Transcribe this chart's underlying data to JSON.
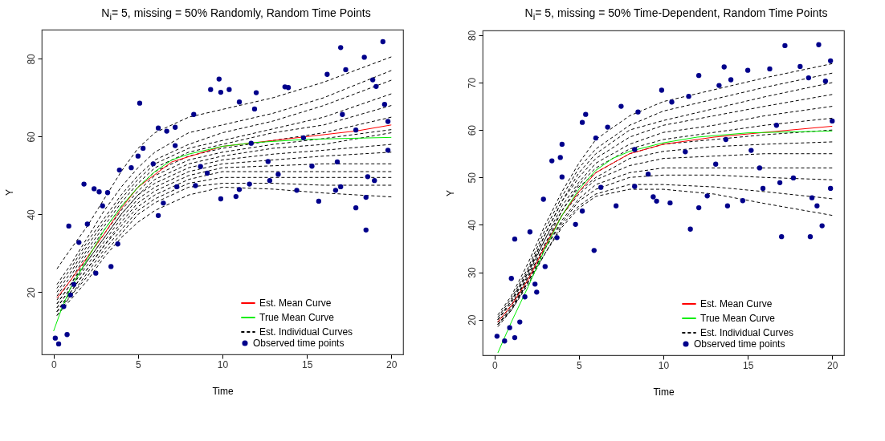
{
  "chart_data": [
    {
      "type": "line",
      "title": "N$_{i}$= 5, missing = 50% Randomly, Random Time Points",
      "xlabel": "Time",
      "ylabel": "Y",
      "xlim": [
        -0.7,
        20.7
      ],
      "xticks": [
        0,
        5,
        10,
        15,
        20
      ],
      "ylim": [
        4,
        87.5
      ],
      "yticks": [
        20,
        40,
        60,
        80
      ],
      "legend": "bottom right",
      "x": [
        0.2,
        1,
        2,
        3,
        4,
        5,
        6,
        8,
        10,
        13,
        16,
        20
      ],
      "series": [
        {
          "name": "Est. Individual Curves",
          "color": "#000000",
          "line_style": "dashed",
          "values": [
            26,
            31,
            37,
            44,
            51,
            57,
            61,
            65,
            67,
            70,
            74,
            80.5
          ]
        },
        {
          "color": "#000000",
          "line_style": "dashed",
          "values": [
            22,
            27,
            34,
            41,
            47,
            52,
            56,
            61,
            63,
            66,
            70,
            77
          ]
        },
        {
          "color": "#000000",
          "line_style": "dashed",
          "values": [
            21,
            26,
            33,
            39,
            45,
            50,
            54,
            58,
            61,
            64,
            68,
            74.5
          ]
        },
        {
          "color": "#000000",
          "line_style": "dashed",
          "values": [
            20,
            25,
            32,
            38,
            44,
            49,
            53,
            57,
            59,
            62,
            65,
            71
          ]
        },
        {
          "color": "#000000",
          "line_style": "dashed",
          "values": [
            19,
            24,
            31,
            37,
            43,
            48,
            52,
            56,
            58,
            61,
            63,
            68
          ]
        },
        {
          "color": "#000000",
          "line_style": "dashed",
          "values": [
            18,
            23,
            30,
            36,
            42,
            47,
            51,
            55,
            57,
            59,
            61,
            65
          ]
        },
        {
          "color": "#000000",
          "line_style": "dashed",
          "values": [
            17,
            22,
            29,
            35,
            41,
            46,
            50,
            54,
            56,
            58,
            59.5,
            61.8
          ]
        },
        {
          "color": "#000000",
          "line_style": "dashed",
          "values": [
            17,
            22,
            28,
            34,
            40,
            45,
            49,
            53,
            55,
            57,
            58,
            61
          ]
        },
        {
          "color": "#000000",
          "line_style": "dashed",
          "values": [
            16,
            21,
            28,
            34,
            40,
            45,
            48,
            52,
            54,
            55.5,
            56.5,
            58
          ]
        },
        {
          "color": "#000000",
          "line_style": "dashed",
          "values": [
            16,
            21,
            27,
            33,
            39,
            44,
            47,
            51,
            53,
            54,
            55,
            56
          ]
        },
        {
          "color": "#000000",
          "line_style": "dashed",
          "values": [
            15,
            20,
            26,
            32,
            38,
            43,
            46,
            50,
            52,
            52.5,
            53,
            53
          ]
        },
        {
          "color": "#000000",
          "line_style": "dashed",
          "values": [
            15,
            20,
            26,
            32,
            37,
            42,
            45,
            49,
            51,
            51,
            51,
            51
          ]
        },
        {
          "color": "#000000",
          "line_style": "dashed",
          "values": [
            15,
            19,
            25,
            31,
            36,
            41,
            44,
            48,
            49.5,
            49.5,
            49.5,
            49.5
          ]
        },
        {
          "color": "#000000",
          "line_style": "dashed",
          "values": [
            14,
            19,
            24,
            30,
            35,
            40,
            43,
            47,
            48,
            48,
            47.5,
            47.5
          ]
        },
        {
          "color": "#000000",
          "line_style": "dashed",
          "values": [
            14,
            18,
            23,
            29,
            34,
            38,
            41,
            45,
            47,
            46.5,
            45.5,
            44.5
          ]
        },
        {
          "name": "Est. Mean Curve",
          "color": "#ff0000",
          "line_style": "solid",
          "x": [
            0.2,
            1,
            2,
            3,
            4,
            5,
            7,
            10,
            13,
            15,
            18,
            20
          ],
          "values": [
            18.5,
            23,
            29,
            35,
            41.5,
            47,
            53.5,
            57.5,
            59,
            60,
            61.5,
            63
          ]
        },
        {
          "name": "True Mean Curve",
          "color": "#00ee00",
          "line_style": "solid",
          "x": [
            0,
            0.5,
            1,
            2,
            3,
            4,
            5,
            6,
            7,
            8,
            10,
            12,
            15,
            20
          ],
          "values": [
            10,
            16,
            21,
            28.5,
            36,
            42,
            47,
            51,
            54,
            55.5,
            57.5,
            58.5,
            59.3,
            59.8
          ]
        },
        {
          "name": "Observed time points",
          "type": "scatter",
          "marker": "circle",
          "color": "#00008b",
          "x": [
            0.1,
            0.3,
            0.8,
            0.9,
            0.6,
            1.8,
            2.4,
            2.7,
            2.5,
            3.4,
            3.8,
            3.9,
            5.1,
            5.0,
            6.2,
            6.2,
            6.7,
            6.5,
            7.2,
            7.3,
            8.4,
            8.3,
            9.3,
            9.8,
            9.9,
            10.4,
            9.9,
            10.8,
            11,
            11,
            12,
            11.9,
            11.6,
            12.8,
            13.7,
            13.9,
            14.4,
            15.7,
            16.2,
            17,
            17.3,
            18.4,
            19.5,
            17.9,
            18.5,
            18.5,
            19,
            16.7,
            17,
            18.6,
            19.8,
            19.8,
            19.6,
            19.1,
            18.9,
            15.3,
            16.8,
            13.3,
            9.1,
            8.7,
            7.2,
            5.9,
            5.3,
            4.6,
            3.2,
            2,
            1.5,
            1.2,
            1,
            2.9,
            11.7,
            14.8,
            17.9,
            12.7,
            17.1
          ],
          "values": [
            8.2,
            6.7,
            9.1,
            37,
            16.3,
            47.8,
            46.6,
            45.8,
            24.9,
            26.6,
            32.4,
            51.4,
            68.6,
            55,
            39.7,
            62.2,
            61.4,
            42.9,
            62.4,
            47.1,
            47.4,
            65.7,
            72.1,
            74.8,
            71.4,
            72.1,
            44,
            44.6,
            46.4,
            68.9,
            71.3,
            67.1,
            47.8,
            48.7,
            72.8,
            72.6,
            46.2,
            43.4,
            76,
            82.9,
            77.2,
            80.4,
            84.4,
            41.7,
            36,
            44.4,
            48.7,
            46.2,
            47.1,
            49.7,
            56.5,
            63.9,
            68.3,
            72.9,
            74.6,
            52.4,
            53.5,
            50.3,
            50.6,
            52.3,
            57.7,
            53,
            57,
            52,
            45.6,
            37.5,
            32.8,
            22,
            19.3,
            42.2,
            58.3,
            59.7,
            61.7,
            53.6,
            65.7
          ]
        }
      ]
    },
    {
      "type": "line",
      "title": "N$_{i}$= 5, missing = 50% Time-Dependent, Random Time Points",
      "xlabel": "Time",
      "ylabel": "Y",
      "xlim": [
        -0.7,
        20.7
      ],
      "xticks": [
        0,
        5,
        10,
        15,
        20
      ],
      "ylim": [
        12.5,
        81
      ],
      "yticks": [
        20,
        30,
        40,
        50,
        60,
        70,
        80
      ],
      "legend": "bottom right",
      "x": [
        0.2,
        1,
        2,
        3,
        4,
        5,
        6,
        8,
        10,
        13,
        16,
        20
      ],
      "series": [
        {
          "name": "Est. Individual Curves",
          "color": "#000000",
          "line_style": "dashed",
          "values": [
            21,
            25,
            32,
            40,
            47,
            53,
            58,
            63,
            66,
            68.5,
            71,
            74
          ]
        },
        {
          "color": "#000000",
          "line_style": "dashed",
          "values": [
            20.5,
            24.5,
            31,
            39,
            46,
            52,
            56,
            61,
            64,
            66.5,
            69,
            72
          ]
        },
        {
          "color": "#000000",
          "line_style": "dashed",
          "values": [
            20,
            24,
            30.5,
            38,
            45,
            51,
            55,
            60,
            62,
            64.5,
            67,
            70
          ]
        },
        {
          "color": "#000000",
          "line_style": "dashed",
          "values": [
            20,
            24,
            30,
            38,
            45,
            50,
            54,
            58.5,
            61,
            63,
            65,
            67.5
          ]
        },
        {
          "color": "#000000",
          "line_style": "dashed",
          "values": [
            20,
            23.5,
            30,
            37,
            44,
            49,
            53,
            57,
            59.5,
            61,
            63,
            65
          ]
        },
        {
          "color": "#000000",
          "line_style": "dashed",
          "values": [
            19.5,
            23,
            29.5,
            37,
            43,
            48.5,
            52,
            56,
            58,
            59.5,
            61,
            62.5
          ]
        },
        {
          "color": "#000000",
          "line_style": "dashed",
          "values": [
            19.5,
            23,
            29,
            36,
            43,
            48,
            51,
            55,
            57,
            58,
            59,
            60
          ]
        },
        {
          "color": "#000000",
          "line_style": "dashed",
          "values": [
            19.5,
            23,
            29,
            36,
            42,
            47,
            50,
            54,
            55.5,
            56.5,
            57,
            57.5
          ]
        },
        {
          "color": "#000000",
          "line_style": "dashed",
          "values": [
            19,
            22.5,
            28.5,
            35.5,
            42,
            46.5,
            49.5,
            52.5,
            54,
            54.5,
            55,
            55
          ]
        },
        {
          "color": "#000000",
          "line_style": "dashed",
          "values": [
            19,
            22.5,
            28,
            35,
            41,
            45.5,
            48.5,
            51,
            52,
            52,
            52,
            52
          ]
        },
        {
          "color": "#000000",
          "line_style": "dashed",
          "values": [
            19,
            22,
            28,
            35,
            40.5,
            45,
            47.5,
            50,
            50.5,
            50.5,
            50,
            49.5
          ]
        },
        {
          "color": "#000000",
          "line_style": "dashed",
          "values": [
            19,
            22,
            28,
            34,
            40,
            44,
            46.5,
            48.5,
            48.5,
            48,
            47,
            45.5
          ]
        },
        {
          "color": "#000000",
          "line_style": "dashed",
          "values": [
            18.5,
            22,
            27.5,
            34,
            39.5,
            43.5,
            46,
            47.5,
            47.5,
            46.5,
            44.5,
            42
          ]
        },
        {
          "name": "Est. Mean Curve",
          "color": "#ff0000",
          "line_style": "solid",
          "x": [
            0.2,
            1,
            2,
            3,
            4,
            5,
            6,
            8,
            10,
            13,
            16,
            20
          ],
          "values": [
            19.5,
            23,
            28.5,
            35.5,
            42,
            47,
            51,
            55,
            57,
            58.5,
            59.5,
            60.8
          ]
        },
        {
          "name": "True Mean Curve",
          "color": "#00ee00",
          "line_style": "solid",
          "x": [
            0.2,
            1,
            2,
            3,
            4,
            5,
            6,
            7,
            8,
            10,
            12,
            15,
            20
          ],
          "values": [
            13,
            19.5,
            27,
            35,
            42,
            47.5,
            51.5,
            54,
            55.5,
            57.3,
            58.5,
            59.4,
            59.8
          ]
        },
        {
          "name": "Observed time points",
          "type": "scatter",
          "marker": "circle",
          "color": "#00008b",
          "x": [
            0.15,
            0.6,
            1.2,
            1.2,
            0.9,
            1,
            2.1,
            2.4,
            2.5,
            2.9,
            3.4,
            4,
            3.9,
            4,
            5.2,
            5.4,
            6,
            5.9,
            6.7,
            7.5,
            7.2,
            8.5,
            8.3,
            9.4,
            9.6,
            9.9,
            10.4,
            10.5,
            11.5,
            11.6,
            12.1,
            12.1,
            12.6,
            13.3,
            13.6,
            13.8,
            14,
            14.7,
            15,
            16.3,
            15.9,
            17,
            17.2,
            16.9,
            18.1,
            18.6,
            18.7,
            18.8,
            19.2,
            19.1,
            19.4,
            19.9,
            19.9,
            20,
            19.6,
            17.7,
            15.7,
            13.1,
            11.3,
            9.1,
            8.3,
            6.3,
            4.8,
            3.7,
            3,
            1.8,
            1.5,
            5.2,
            13.7,
            16.7,
            15.2
          ],
          "values": [
            16.5,
            15.5,
            37,
            16.2,
            18.3,
            28.7,
            38.5,
            27.5,
            25.8,
            45.4,
            53.5,
            57,
            54.2,
            50.1,
            61.6,
            63.3,
            58.3,
            34.6,
            60.6,
            65,
            44,
            63.8,
            48.1,
            45.9,
            45,
            68.4,
            44.6,
            65.9,
            67.1,
            39.1,
            71.5,
            43.6,
            46.1,
            69.4,
            73.3,
            44,
            70.6,
            45.1,
            72.6,
            72.9,
            47.7,
            37.5,
            77.8,
            48.9,
            73.4,
            71,
            37.5,
            45.7,
            78,
            44,
            39.8,
            74.6,
            47.7,
            61.9,
            70.3,
            49.9,
            52,
            52.8,
            55.4,
            50.7,
            55.9,
            47.9,
            40.1,
            37.3,
            31.2,
            24.8,
            19.5,
            42.9,
            58,
            61,
            55.7
          ]
        }
      ]
    }
  ]
}
